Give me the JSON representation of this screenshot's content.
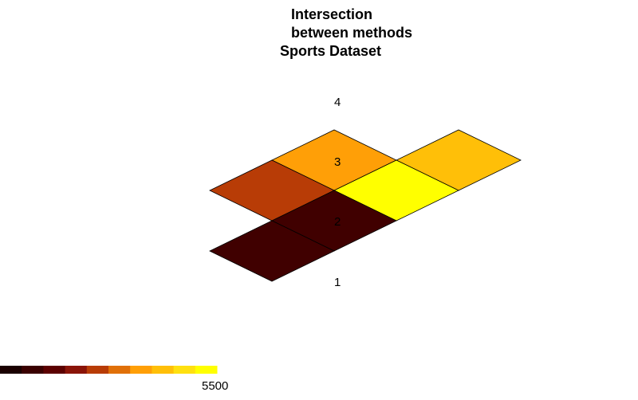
{
  "chart_data": {
    "type": "heatmap",
    "title_lines": [
      "Intersection",
      "between methods",
      "Sports Dataset"
    ],
    "row_labels": [
      "1",
      "2",
      "3",
      "4"
    ],
    "cells": [
      {
        "row": 1,
        "col": 1,
        "color": "#400000"
      },
      {
        "row": 2,
        "col": 1,
        "color": "#400000"
      },
      {
        "row": 2,
        "col": 2,
        "color": "#b83c06"
      },
      {
        "row": 3,
        "col": 1,
        "color": "#ffff00"
      },
      {
        "row": 3,
        "col": 2,
        "color": "#ff9f07"
      },
      {
        "row": 4,
        "col": 1,
        "color": "#ffbf08"
      }
    ],
    "colorbar": {
      "colors": [
        "#1a0000",
        "#3a0000",
        "#5c0000",
        "#8a1408",
        "#b83c06",
        "#e07008",
        "#ff9f07",
        "#ffbf08",
        "#ffe010",
        "#ffff00"
      ],
      "max_label": "5500"
    }
  }
}
